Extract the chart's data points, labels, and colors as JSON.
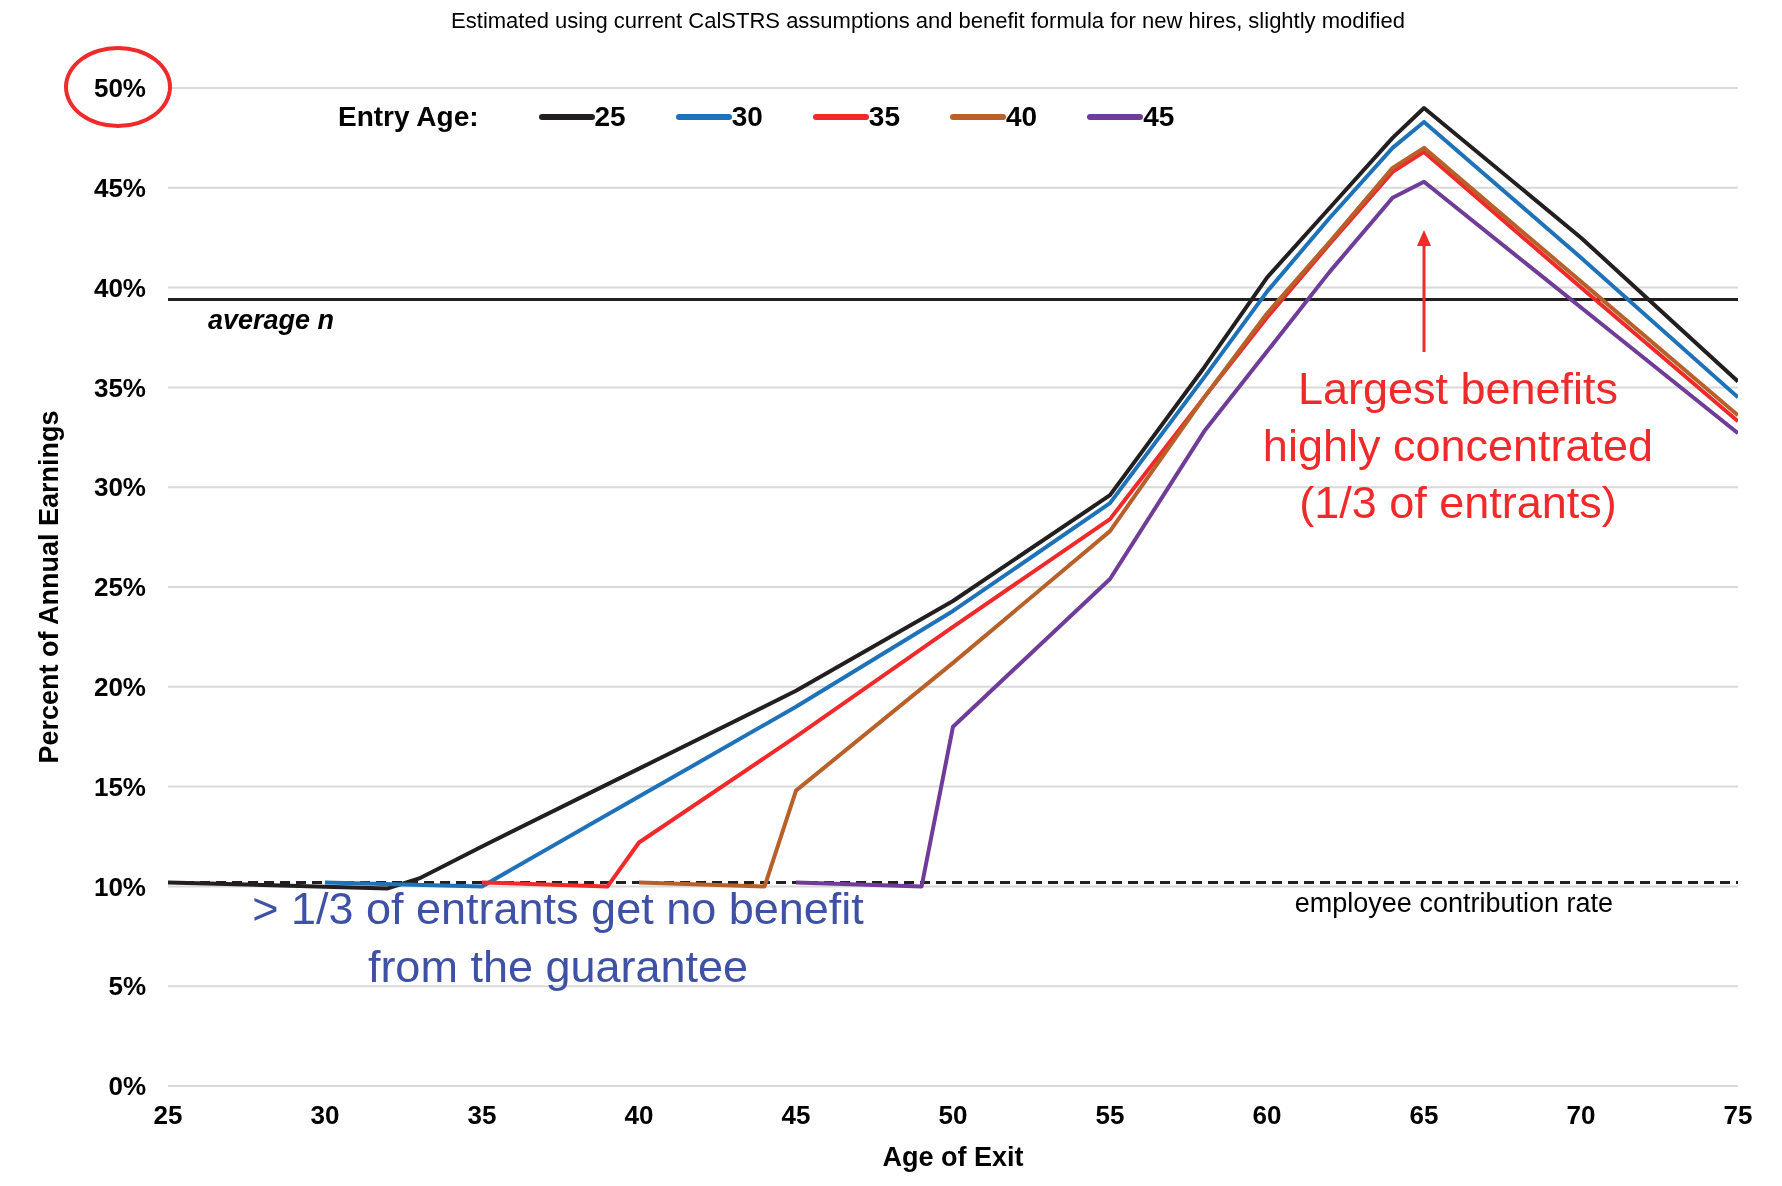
{
  "chart_data": {
    "type": "line",
    "subtitle": "Estimated using current CalSTRS assumptions and benefit formula for new hires, slightly modified",
    "xlabel": "Age of Exit",
    "ylabel": "Percent of Annual Earnings",
    "legend_title": "Entry Age:",
    "series": [
      {
        "name": "25",
        "color": "#231f20",
        "x": [
          25,
          32,
          33,
          35,
          40,
          45,
          50,
          55,
          58,
          60,
          62,
          64,
          65,
          70,
          75
        ],
        "values": [
          10.2,
          9.9,
          10.4,
          12,
          15.9,
          19.8,
          24.3,
          29.6,
          36,
          40.5,
          44,
          47.5,
          49,
          42.5,
          35.3
        ]
      },
      {
        "name": "30",
        "color": "#1f72b8",
        "x": [
          30,
          35,
          40,
          45,
          50,
          55,
          58,
          60,
          62,
          64,
          65,
          70,
          75
        ],
        "values": [
          10.2,
          10,
          14.5,
          19,
          23.8,
          29.2,
          35.5,
          39.8,
          43.5,
          47,
          48.3,
          41.5,
          34.5
        ]
      },
      {
        "name": "35",
        "color": "#ee2a2a",
        "x": [
          35,
          39,
          40,
          45,
          50,
          55,
          58,
          60,
          62,
          64,
          65,
          70,
          75
        ],
        "values": [
          10.2,
          10,
          12.2,
          17.5,
          23,
          28.4,
          34.5,
          38.5,
          42.2,
          45.8,
          46.8,
          40,
          33.3
        ]
      },
      {
        "name": "40",
        "color": "#b8602a",
        "x": [
          40,
          44,
          45,
          50,
          55,
          58,
          60,
          62,
          64,
          65,
          70,
          75
        ],
        "values": [
          10.2,
          10,
          14.8,
          21.2,
          27.8,
          34.5,
          38.7,
          42.3,
          46,
          47,
          40.3,
          33.6
        ]
      },
      {
        "name": "45",
        "color": "#6f3c98",
        "x": [
          45,
          49,
          50,
          55,
          58,
          60,
          62,
          64,
          65,
          70,
          75
        ],
        "values": [
          10.2,
          10,
          18,
          25.4,
          32.8,
          36.8,
          40.8,
          44.5,
          45.3,
          39,
          32.7
        ]
      }
    ],
    "xlim": [
      25,
      75
    ],
    "xticks": [
      25,
      30,
      35,
      40,
      45,
      50,
      55,
      60,
      65,
      70,
      75
    ],
    "ylim": [
      0,
      50
    ],
    "yticks": [
      {
        "value": 0,
        "label": "0%"
      },
      {
        "value": 5,
        "label": "5%"
      },
      {
        "value": 10,
        "label": "10%"
      },
      {
        "value": 15,
        "label": "15%"
      },
      {
        "value": 20,
        "label": "20%"
      },
      {
        "value": 25,
        "label": "25%"
      },
      {
        "value": 30,
        "label": "30%"
      },
      {
        "value": 35,
        "label": "35%"
      },
      {
        "value": 40,
        "label": "40%"
      },
      {
        "value": 45,
        "label": "45%"
      },
      {
        "value": 50,
        "label": "50%"
      }
    ],
    "ref_lines": [
      {
        "axis": "y",
        "value": 39.4,
        "label": "average n",
        "color": "#231f20",
        "line_style": "solid"
      },
      {
        "axis": "y",
        "value": 10.2,
        "label": "employee contribution rate",
        "color": "#231f20",
        "line_style": "dashed"
      }
    ],
    "annotations": [
      "Largest benefits\nhighly concentrated\n(1/3 of entrants)",
      "> 1/3 of entrants get no benefit\nfrom the guarantee"
    ],
    "grid": "y",
    "legend": "top left",
    "marker": "none",
    "line_style": "solid"
  }
}
